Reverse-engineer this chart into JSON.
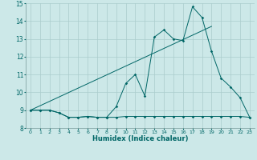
{
  "title": "",
  "xlabel": "Humidex (Indice chaleur)",
  "bg_color": "#cce8e8",
  "grid_color": "#aacccc",
  "line_color": "#006666",
  "xlim": [
    -0.5,
    23.5
  ],
  "ylim": [
    8.0,
    15.0
  ],
  "yticks": [
    8,
    9,
    10,
    11,
    12,
    13,
    14,
    15
  ],
  "xticks": [
    0,
    1,
    2,
    3,
    4,
    5,
    6,
    7,
    8,
    9,
    10,
    11,
    12,
    13,
    14,
    15,
    16,
    17,
    18,
    19,
    20,
    21,
    22,
    23
  ],
  "line1_x": [
    0,
    1,
    2,
    3,
    4,
    5,
    6,
    7,
    8,
    9,
    10,
    11,
    12,
    13,
    14,
    15,
    16,
    17,
    18,
    19,
    20,
    21,
    22,
    23
  ],
  "line1_y": [
    9.0,
    9.0,
    9.0,
    8.85,
    8.6,
    8.6,
    8.65,
    8.6,
    8.6,
    8.6,
    8.65,
    8.65,
    8.65,
    8.65,
    8.65,
    8.65,
    8.65,
    8.65,
    8.65,
    8.65,
    8.65,
    8.65,
    8.65,
    8.6
  ],
  "line2_x": [
    0,
    1,
    2,
    3,
    4,
    5,
    6,
    7,
    8,
    9,
    10,
    11,
    12,
    13,
    14,
    15,
    16,
    17,
    18,
    19,
    20,
    21,
    22,
    23
  ],
  "line2_y": [
    9.0,
    9.0,
    9.0,
    8.85,
    8.6,
    8.6,
    8.65,
    8.6,
    8.6,
    9.2,
    10.5,
    11.0,
    9.8,
    13.1,
    13.5,
    13.0,
    12.9,
    14.8,
    14.2,
    12.3,
    10.8,
    10.3,
    9.7,
    8.6
  ],
  "line3_x": [
    0,
    19
  ],
  "line3_y": [
    9.0,
    13.7
  ]
}
